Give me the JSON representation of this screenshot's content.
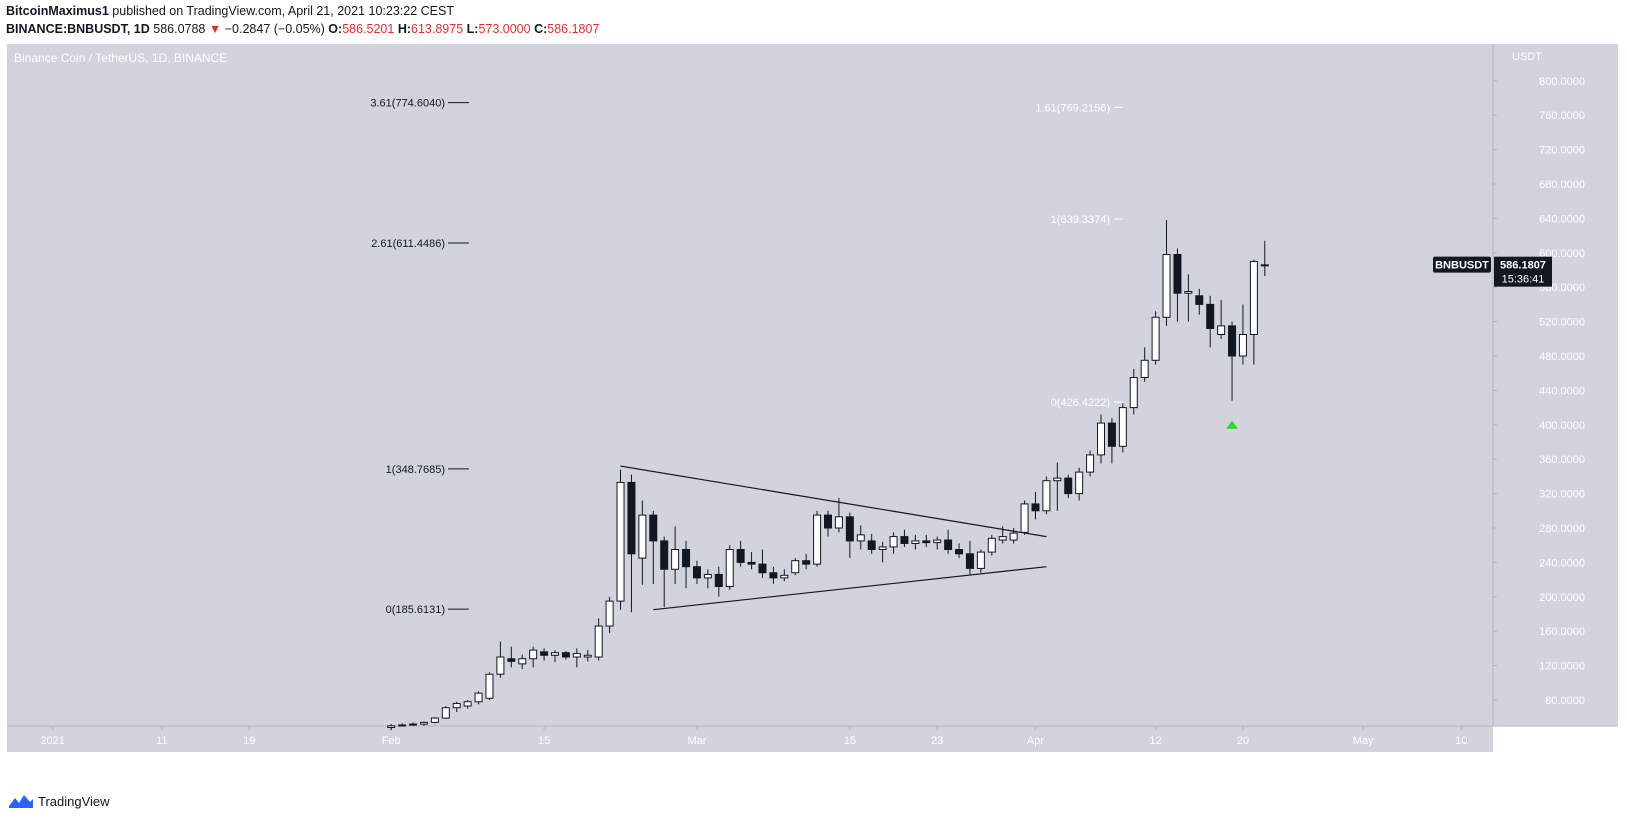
{
  "header": {
    "author": "BitcoinMaximus1",
    "published_text": "published on TradingView.com, April 21, 2021 10:23:22 CEST",
    "symbol_line": "BINANCE:BNBUSDT, 1D",
    "price": "586.0788",
    "change_arrow": "▼",
    "change": "−0.2847 (−0.05%)",
    "ohlc": {
      "o_label": "O:",
      "o": "586.5201",
      "h_label": "H:",
      "h": "613.8975",
      "l_label": "L:",
      "l": "573.0000",
      "c_label": "C:",
      "c": "586.1807"
    }
  },
  "chart_title": "Binance Coin / TetherUS, 1D, BINANCE",
  "footer": {
    "brand": "TradingView",
    "logo_icon": "tradingview-logo-icon"
  },
  "colors": {
    "background": "#d1d4dc",
    "panel": "#ffffff",
    "up_body": "#ffffff",
    "down_body": "#131722",
    "negative": "#e0302e",
    "marker": "#22dd22",
    "label_bg": "#131722"
  },
  "chart_data": {
    "type": "candlestick",
    "title": "Binance Coin / TetherUS, 1D, BINANCE",
    "price_scale": {
      "currency": "USDT",
      "ticks": [
        "80.0000",
        "120.0000",
        "160.0000",
        "200.0000",
        "240.0000",
        "280.0000",
        "320.0000",
        "360.0000",
        "400.0000",
        "440.0000",
        "480.0000",
        "520.0000",
        "560.0000",
        "600.0000",
        "640.0000",
        "680.0000",
        "720.0000",
        "760.0000",
        "800.0000"
      ],
      "ylim": [
        50,
        845
      ]
    },
    "time_axis": {
      "start_date": "2020-12-28",
      "ticks": [
        {
          "label": "2021",
          "date": "2021-01-01"
        },
        {
          "label": "11",
          "date": "2021-01-11"
        },
        {
          "label": "19",
          "date": "2021-01-19"
        },
        {
          "label": "Feb",
          "date": "2021-02-01"
        },
        {
          "label": "15",
          "date": "2021-02-15"
        },
        {
          "label": "Mar",
          "date": "2021-03-01"
        },
        {
          "label": "15",
          "date": "2021-03-15"
        },
        {
          "label": "23",
          "date": "2021-03-23"
        },
        {
          "label": "Apr",
          "date": "2021-04-01"
        },
        {
          "label": "12",
          "date": "2021-04-12"
        },
        {
          "label": "20",
          "date": "2021-04-20"
        },
        {
          "label": "May",
          "date": "2021-05-01"
        },
        {
          "label": "10",
          "date": "2021-05-10"
        }
      ]
    },
    "candles": [
      {
        "t": "2021-02-01",
        "o": 48,
        "h": 52,
        "l": 45,
        "c": 50
      },
      {
        "t": "2021-02-02",
        "o": 50,
        "h": 53,
        "l": 49,
        "c": 51
      },
      {
        "t": "2021-02-03",
        "o": 51,
        "h": 54,
        "l": 50,
        "c": 52
      },
      {
        "t": "2021-02-04",
        "o": 52,
        "h": 55,
        "l": 50,
        "c": 54
      },
      {
        "t": "2021-02-05",
        "o": 54,
        "h": 60,
        "l": 53,
        "c": 59
      },
      {
        "t": "2021-02-06",
        "o": 59,
        "h": 73,
        "l": 58,
        "c": 71
      },
      {
        "t": "2021-02-07",
        "o": 71,
        "h": 78,
        "l": 66,
        "c": 76
      },
      {
        "t": "2021-02-08",
        "o": 73,
        "h": 80,
        "l": 70,
        "c": 78
      },
      {
        "t": "2021-02-09",
        "o": 78,
        "h": 90,
        "l": 75,
        "c": 88
      },
      {
        "t": "2021-02-10",
        "o": 82,
        "h": 112,
        "l": 80,
        "c": 110
      },
      {
        "t": "2021-02-11",
        "o": 110,
        "h": 148,
        "l": 106,
        "c": 130
      },
      {
        "t": "2021-02-12",
        "o": 128,
        "h": 142,
        "l": 118,
        "c": 125
      },
      {
        "t": "2021-02-13",
        "o": 122,
        "h": 133,
        "l": 116,
        "c": 128
      },
      {
        "t": "2021-02-14",
        "o": 128,
        "h": 142,
        "l": 118,
        "c": 138
      },
      {
        "t": "2021-02-15",
        "o": 136,
        "h": 140,
        "l": 126,
        "c": 132
      },
      {
        "t": "2021-02-16",
        "o": 132,
        "h": 138,
        "l": 124,
        "c": 135
      },
      {
        "t": "2021-02-17",
        "o": 135,
        "h": 137,
        "l": 127,
        "c": 130
      },
      {
        "t": "2021-02-18",
        "o": 130,
        "h": 140,
        "l": 118,
        "c": 134
      },
      {
        "t": "2021-02-19",
        "o": 130,
        "h": 138,
        "l": 125,
        "c": 132
      },
      {
        "t": "2021-02-20",
        "o": 130,
        "h": 175,
        "l": 126,
        "c": 166
      },
      {
        "t": "2021-02-21",
        "o": 166,
        "h": 200,
        "l": 158,
        "c": 195
      },
      {
        "t": "2021-02-22",
        "o": 195,
        "h": 348,
        "l": 185,
        "c": 333
      },
      {
        "t": "2021-02-23",
        "o": 333,
        "h": 342,
        "l": 182,
        "c": 250
      },
      {
        "t": "2021-02-24",
        "o": 245,
        "h": 312,
        "l": 214,
        "c": 295
      },
      {
        "t": "2021-02-25",
        "o": 295,
        "h": 300,
        "l": 215,
        "c": 265
      },
      {
        "t": "2021-02-26",
        "o": 265,
        "h": 270,
        "l": 188,
        "c": 232
      },
      {
        "t": "2021-02-27",
        "o": 232,
        "h": 282,
        "l": 215,
        "c": 255
      },
      {
        "t": "2021-02-28",
        "o": 255,
        "h": 265,
        "l": 210,
        "c": 235
      },
      {
        "t": "2021-03-01",
        "o": 235,
        "h": 242,
        "l": 215,
        "c": 222
      },
      {
        "t": "2021-03-02",
        "o": 222,
        "h": 232,
        "l": 210,
        "c": 226
      },
      {
        "t": "2021-03-03",
        "o": 226,
        "h": 235,
        "l": 200,
        "c": 212
      },
      {
        "t": "2021-03-04",
        "o": 212,
        "h": 260,
        "l": 208,
        "c": 255
      },
      {
        "t": "2021-03-05",
        "o": 255,
        "h": 265,
        "l": 235,
        "c": 240
      },
      {
        "t": "2021-03-06",
        "o": 240,
        "h": 252,
        "l": 232,
        "c": 238
      },
      {
        "t": "2021-03-07",
        "o": 238,
        "h": 255,
        "l": 222,
        "c": 228
      },
      {
        "t": "2021-03-08",
        "o": 228,
        "h": 235,
        "l": 215,
        "c": 222
      },
      {
        "t": "2021-03-09",
        "o": 222,
        "h": 232,
        "l": 218,
        "c": 225
      },
      {
        "t": "2021-03-10",
        "o": 228,
        "h": 245,
        "l": 225,
        "c": 242
      },
      {
        "t": "2021-03-11",
        "o": 242,
        "h": 250,
        "l": 232,
        "c": 238
      },
      {
        "t": "2021-03-12",
        "o": 238,
        "h": 300,
        "l": 235,
        "c": 295
      },
      {
        "t": "2021-03-13",
        "o": 295,
        "h": 300,
        "l": 270,
        "c": 280
      },
      {
        "t": "2021-03-14",
        "o": 280,
        "h": 315,
        "l": 275,
        "c": 293
      },
      {
        "t": "2021-03-15",
        "o": 293,
        "h": 298,
        "l": 245,
        "c": 265
      },
      {
        "t": "2021-03-16",
        "o": 265,
        "h": 283,
        "l": 255,
        "c": 272
      },
      {
        "t": "2021-03-17",
        "o": 265,
        "h": 273,
        "l": 250,
        "c": 255
      },
      {
        "t": "2021-03-18",
        "o": 255,
        "h": 264,
        "l": 240,
        "c": 258
      },
      {
        "t": "2021-03-19",
        "o": 258,
        "h": 275,
        "l": 250,
        "c": 270
      },
      {
        "t": "2021-03-20",
        "o": 270,
        "h": 278,
        "l": 258,
        "c": 262
      },
      {
        "t": "2021-03-21",
        "o": 262,
        "h": 272,
        "l": 255,
        "c": 265
      },
      {
        "t": "2021-03-22",
        "o": 265,
        "h": 272,
        "l": 258,
        "c": 263
      },
      {
        "t": "2021-03-23",
        "o": 263,
        "h": 270,
        "l": 255,
        "c": 266
      },
      {
        "t": "2021-03-24",
        "o": 266,
        "h": 278,
        "l": 250,
        "c": 255
      },
      {
        "t": "2021-03-25",
        "o": 255,
        "h": 262,
        "l": 245,
        "c": 250
      },
      {
        "t": "2021-03-26",
        "o": 250,
        "h": 265,
        "l": 225,
        "c": 233
      },
      {
        "t": "2021-03-27",
        "o": 233,
        "h": 255,
        "l": 228,
        "c": 252
      },
      {
        "t": "2021-03-28",
        "o": 252,
        "h": 272,
        "l": 248,
        "c": 268
      },
      {
        "t": "2021-03-29",
        "o": 266,
        "h": 282,
        "l": 262,
        "c": 270
      },
      {
        "t": "2021-03-30",
        "o": 266,
        "h": 280,
        "l": 262,
        "c": 274
      },
      {
        "t": "2021-03-31",
        "o": 275,
        "h": 312,
        "l": 272,
        "c": 308
      },
      {
        "t": "2021-04-01",
        "o": 308,
        "h": 322,
        "l": 290,
        "c": 300
      },
      {
        "t": "2021-04-02",
        "o": 300,
        "h": 340,
        "l": 296,
        "c": 335
      },
      {
        "t": "2021-04-03",
        "o": 335,
        "h": 356,
        "l": 300,
        "c": 338
      },
      {
        "t": "2021-04-04",
        "o": 338,
        "h": 342,
        "l": 315,
        "c": 320
      },
      {
        "t": "2021-04-05",
        "o": 320,
        "h": 350,
        "l": 312,
        "c": 345
      },
      {
        "t": "2021-04-06",
        "o": 345,
        "h": 370,
        "l": 340,
        "c": 365
      },
      {
        "t": "2021-04-07",
        "o": 365,
        "h": 412,
        "l": 355,
        "c": 402
      },
      {
        "t": "2021-04-08",
        "o": 402,
        "h": 408,
        "l": 355,
        "c": 375
      },
      {
        "t": "2021-04-09",
        "o": 375,
        "h": 425,
        "l": 368,
        "c": 420
      },
      {
        "t": "2021-04-10",
        "o": 420,
        "h": 465,
        "l": 412,
        "c": 455
      },
      {
        "t": "2021-04-11",
        "o": 455,
        "h": 490,
        "l": 450,
        "c": 475
      },
      {
        "t": "2021-04-12",
        "o": 475,
        "h": 532,
        "l": 470,
        "c": 525
      },
      {
        "t": "2021-04-13",
        "o": 525,
        "h": 638,
        "l": 515,
        "c": 598
      },
      {
        "t": "2021-04-14",
        "o": 598,
        "h": 605,
        "l": 520,
        "c": 553
      },
      {
        "t": "2021-04-15",
        "o": 553,
        "h": 575,
        "l": 520,
        "c": 555
      },
      {
        "t": "2021-04-16",
        "o": 550,
        "h": 558,
        "l": 528,
        "c": 540
      },
      {
        "t": "2021-04-17",
        "o": 540,
        "h": 550,
        "l": 490,
        "c": 512
      },
      {
        "t": "2021-04-18",
        "o": 505,
        "h": 545,
        "l": 500,
        "c": 515
      },
      {
        "t": "2021-04-19",
        "o": 515,
        "h": 520,
        "l": 428,
        "c": 480
      },
      {
        "t": "2021-04-20",
        "o": 480,
        "h": 540,
        "l": 470,
        "c": 505
      },
      {
        "t": "2021-04-21",
        "o": 505,
        "h": 592,
        "l": 470,
        "c": 590
      },
      {
        "t": "2021-04-22",
        "o": 586,
        "h": 614,
        "l": 573,
        "c": 586
      }
    ],
    "fib_levels_left": [
      {
        "label": "3.61(774.6040)",
        "value": 774.604
      },
      {
        "label": "2.61(611.4486)",
        "value": 611.4486
      },
      {
        "label": "1(348.7685)",
        "value": 348.7685
      },
      {
        "label": "0(185.6131)",
        "value": 185.6131
      }
    ],
    "fib_levels_right": [
      {
        "label": "1.61(769.2156)",
        "value": 769.2156
      },
      {
        "label": "1(639.3374)",
        "value": 639.3374
      },
      {
        "label": "0(426.4222)",
        "value": 426.4222
      }
    ],
    "trendlines": [
      {
        "name": "triangle-upper",
        "from": {
          "t": "2021-02-22",
          "v": 352
        },
        "to": {
          "t": "2021-04-02",
          "v": 270
        }
      },
      {
        "name": "triangle-lower",
        "from": {
          "t": "2021-02-25",
          "v": 185
        },
        "to": {
          "t": "2021-04-02",
          "v": 235
        }
      }
    ],
    "marker": {
      "shape": "triangle-up",
      "t": "2021-04-19",
      "v": 400
    },
    "last_price": {
      "symbol": "BNBUSDT",
      "price": "586.1807",
      "countdown": "15:36:41",
      "value": 586.1807
    }
  }
}
